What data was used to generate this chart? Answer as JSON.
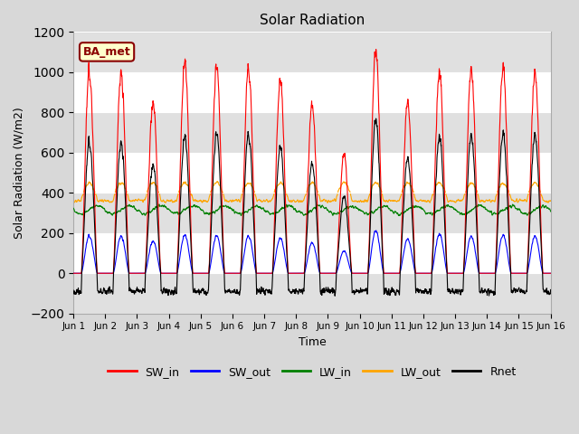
{
  "title": "Solar Radiation",
  "ylabel": "Solar Radiation (W/m2)",
  "xlabel": "Time",
  "ylim": [
    -200,
    1200
  ],
  "n_days": 15,
  "tick_labels": [
    "Jun 1",
    "Jun 2",
    "Jun 3",
    "Jun 4",
    "Jun 5",
    "Jun 6",
    "Jun 7",
    "Jun 8",
    "Jun 9",
    "Jun 10",
    "Jun 11",
    "Jun 12",
    "Jun 13",
    "Jun 14",
    "Jun 15",
    "Jun 16"
  ],
  "annotation_text": "BA_met",
  "annotation_color": "#8B0000",
  "annotation_bg": "#FFFFCC",
  "colors": {
    "SW_in": "red",
    "SW_out": "blue",
    "LW_in": "green",
    "LW_out": "orange",
    "Rnet": "black"
  },
  "legend_labels": [
    "SW_in",
    "SW_out",
    "LW_in",
    "LW_out",
    "Rnet"
  ],
  "yticks": [
    -200,
    0,
    200,
    400,
    600,
    800,
    1000,
    1200
  ],
  "fig_bg": "#d8d8d8",
  "ax_bg": "#ffffff",
  "band_color": "#e0e0e0"
}
